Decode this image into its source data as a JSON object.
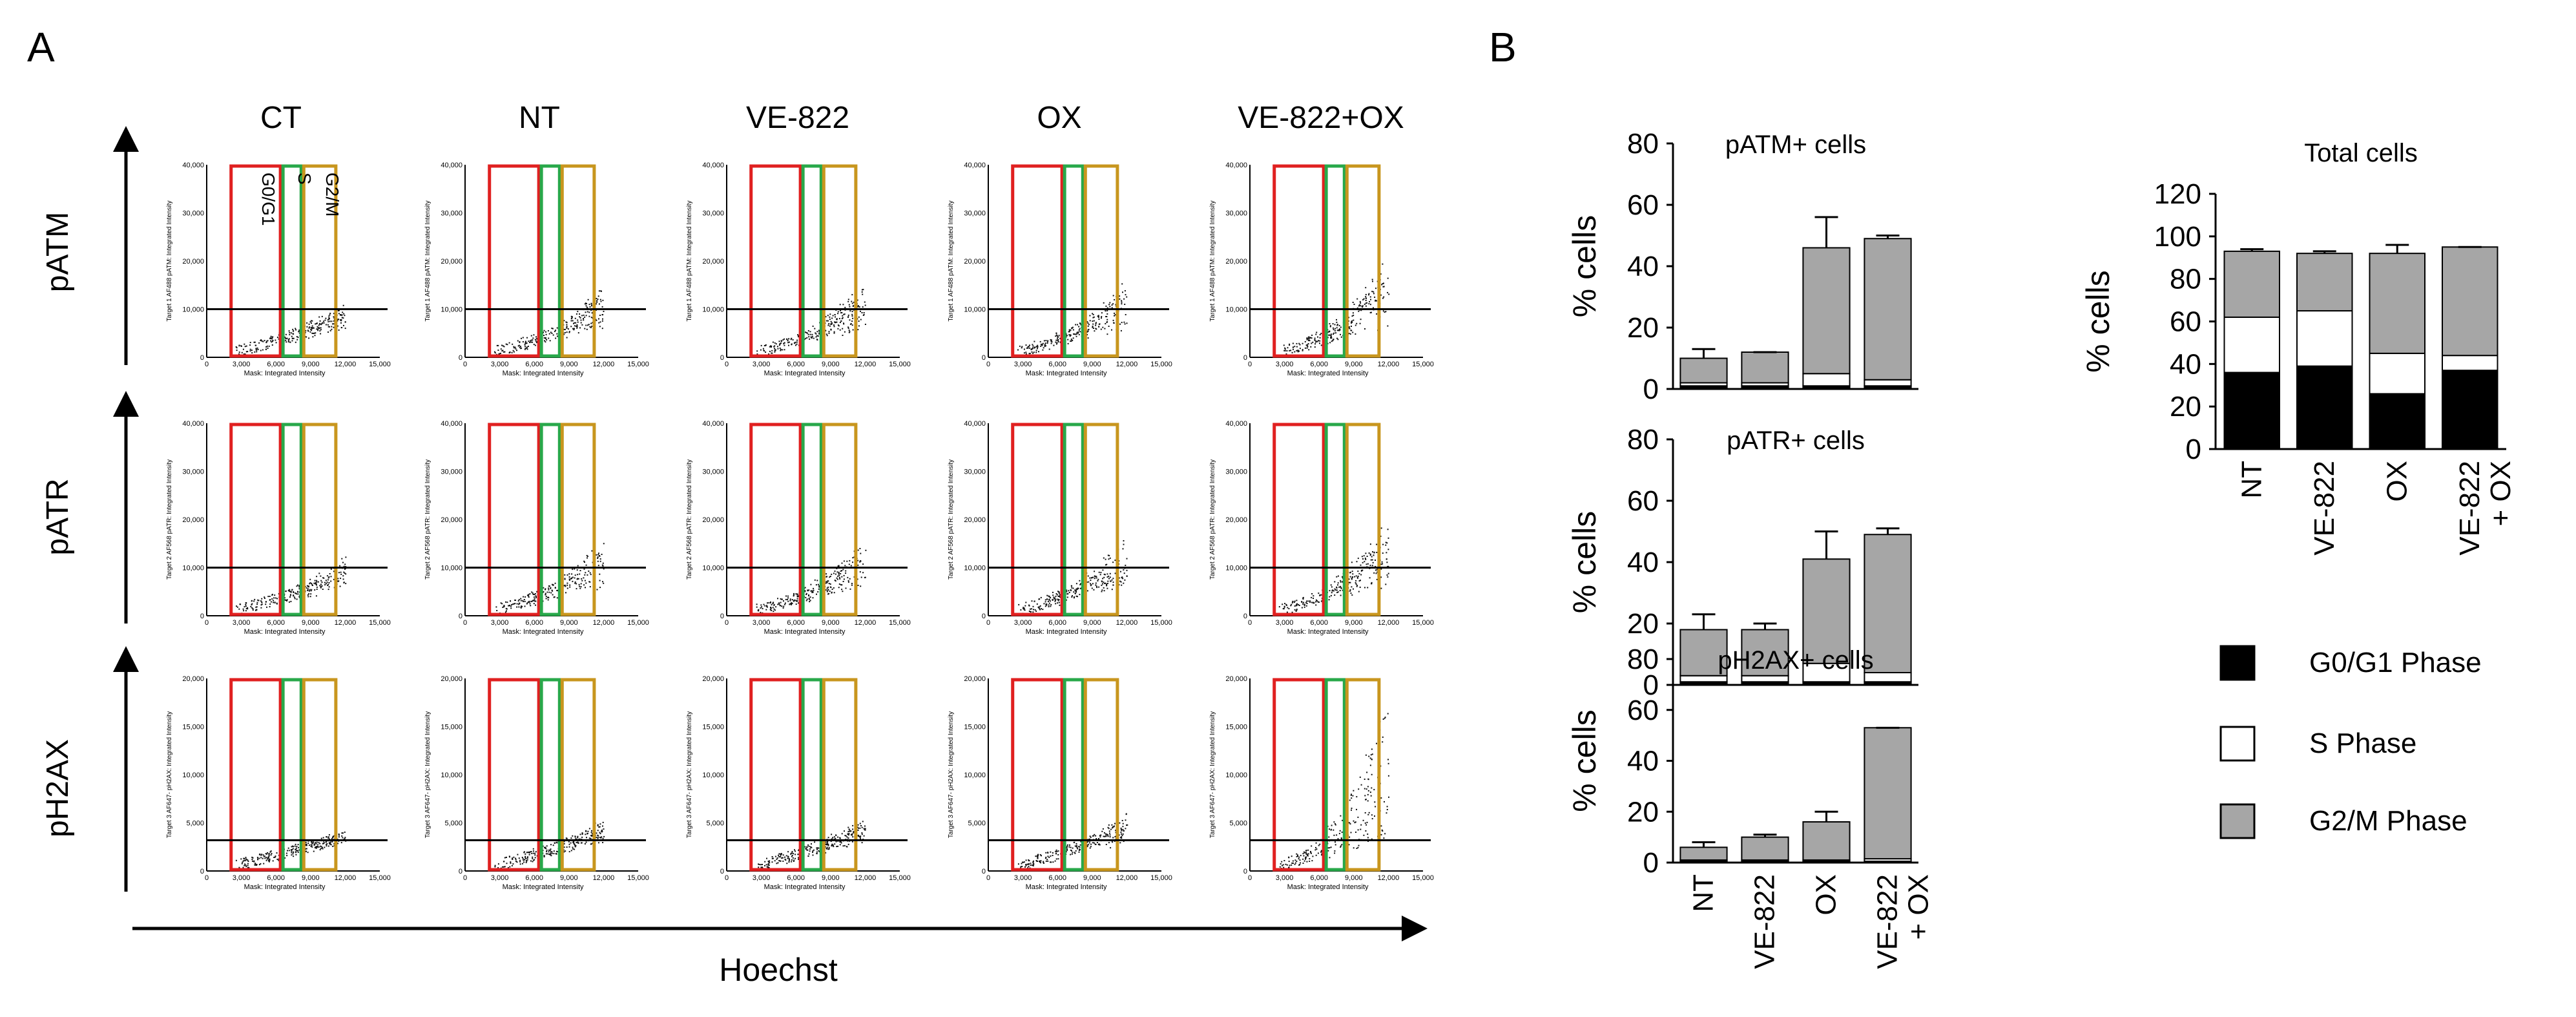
{
  "panel_labels": [
    "A",
    "B"
  ],
  "panel_a": {
    "conditions": [
      "CT",
      "NT",
      "VE-822",
      "OX",
      "VE-822+OX"
    ],
    "row_labels": [
      "pATM",
      "pATR",
      "pH2AX"
    ],
    "x_axis_label": "Hoechst",
    "x_ticks": [
      "0",
      "3,000",
      "6,000",
      "9,000",
      "12,000",
      "15,000"
    ],
    "x_title": "Mask: Integrated Intensity",
    "y_ticks_pATM": [
      "0",
      "10,000",
      "20,000",
      "30,000",
      "40,000"
    ],
    "y_ticks_pATR": [
      "0",
      "10,000",
      "20,000",
      "30,000",
      "40,000"
    ],
    "y_ticks_pH2AX": [
      "0",
      "5,000",
      "10,000",
      "15,000",
      "20,000"
    ],
    "y_title_pATM": "Target 1 AF488 pATM: Integrated Intensity",
    "y_title_pATR": "Target 2 AF568 pATR: Integrated Intensity",
    "y_title_pH2AX": "Target 3 AF647- pH2AX: Integrated Intensity",
    "gate_labels": [
      "G0/G1",
      "S",
      "G2/M"
    ],
    "gate_colors": {
      "g0g1": "#e02020",
      "s": "#28a84a",
      "g2m": "#c8961e"
    }
  },
  "chart_data": [
    {
      "type": "bar",
      "stacked": true,
      "title": "pATM+ cells",
      "ylabel": "% cells",
      "ylim": [
        0,
        80
      ],
      "yticks": [
        "0",
        "20",
        "40",
        "60",
        "80"
      ],
      "categories": [
        "NT",
        "VE-822",
        "OX",
        "VE-822 + OX"
      ],
      "series": [
        {
          "name": "G0/G1 Phase",
          "values": [
            1,
            1,
            1,
            1
          ],
          "color": "#000000"
        },
        {
          "name": "S Phase",
          "values": [
            1,
            1,
            4,
            2
          ],
          "color": "#ffffff"
        },
        {
          "name": "G2/M Phase",
          "values": [
            8,
            10,
            41,
            46
          ],
          "color": "#a6a6a6"
        }
      ],
      "error_top": [
        13,
        12,
        56,
        50
      ]
    },
    {
      "type": "bar",
      "stacked": true,
      "title": "pATR+ cells",
      "ylabel": "% cells",
      "ylim": [
        0,
        80
      ],
      "yticks": [
        "0",
        "20",
        "40",
        "60",
        "80"
      ],
      "categories": [
        "NT",
        "VE-822",
        "OX",
        "VE-822 + OX"
      ],
      "series": [
        {
          "name": "G0/G1 Phase",
          "values": [
            1,
            1,
            1,
            1
          ],
          "color": "#000000"
        },
        {
          "name": "S Phase",
          "values": [
            2,
            2,
            6,
            3
          ],
          "color": "#ffffff"
        },
        {
          "name": "G2/M Phase",
          "values": [
            15,
            15,
            34,
            45
          ],
          "color": "#a6a6a6"
        }
      ],
      "error_top": [
        23,
        20,
        50,
        51
      ]
    },
    {
      "type": "bar",
      "stacked": true,
      "title": "pH2AX+ cells",
      "ylabel": "% cells",
      "ylim": [
        0,
        80
      ],
      "yticks": [
        "0",
        "20",
        "40",
        "60",
        "80"
      ],
      "categories": [
        "NT",
        "VE-822",
        "OX",
        "VE-822 + OX"
      ],
      "series": [
        {
          "name": "G0/G1 Phase",
          "values": [
            0.5,
            0.5,
            0.5,
            0.5
          ],
          "color": "#000000"
        },
        {
          "name": "S Phase",
          "values": [
            0.5,
            0.5,
            0.5,
            1
          ],
          "color": "#ffffff"
        },
        {
          "name": "G2/M Phase",
          "values": [
            5,
            9,
            15,
            51.5
          ],
          "color": "#a6a6a6"
        }
      ],
      "error_top": [
        8,
        11,
        20,
        53
      ]
    },
    {
      "type": "bar",
      "stacked": true,
      "title": "Total cells",
      "ylabel": "% cells",
      "ylim": [
        0,
        120
      ],
      "yticks": [
        "0",
        "20",
        "40",
        "60",
        "80",
        "100",
        "120"
      ],
      "categories": [
        "NT",
        "VE-822",
        "OX",
        "VE-822 + OX"
      ],
      "series": [
        {
          "name": "G0/G1 Phase",
          "values": [
            36,
            39,
            26,
            37
          ],
          "color": "#000000"
        },
        {
          "name": "S Phase",
          "values": [
            26,
            26,
            19,
            7
          ],
          "color": "#ffffff"
        },
        {
          "name": "G2/M Phase",
          "values": [
            31,
            27,
            47,
            51
          ],
          "color": "#a6a6a6"
        }
      ],
      "error_top": [
        94,
        93,
        96,
        95
      ]
    }
  ],
  "legend": [
    {
      "label": "G0/G1 Phase",
      "color": "#000000"
    },
    {
      "label": "S Phase",
      "color": "#ffffff"
    },
    {
      "label": "G2/M Phase",
      "color": "#a6a6a6"
    }
  ]
}
